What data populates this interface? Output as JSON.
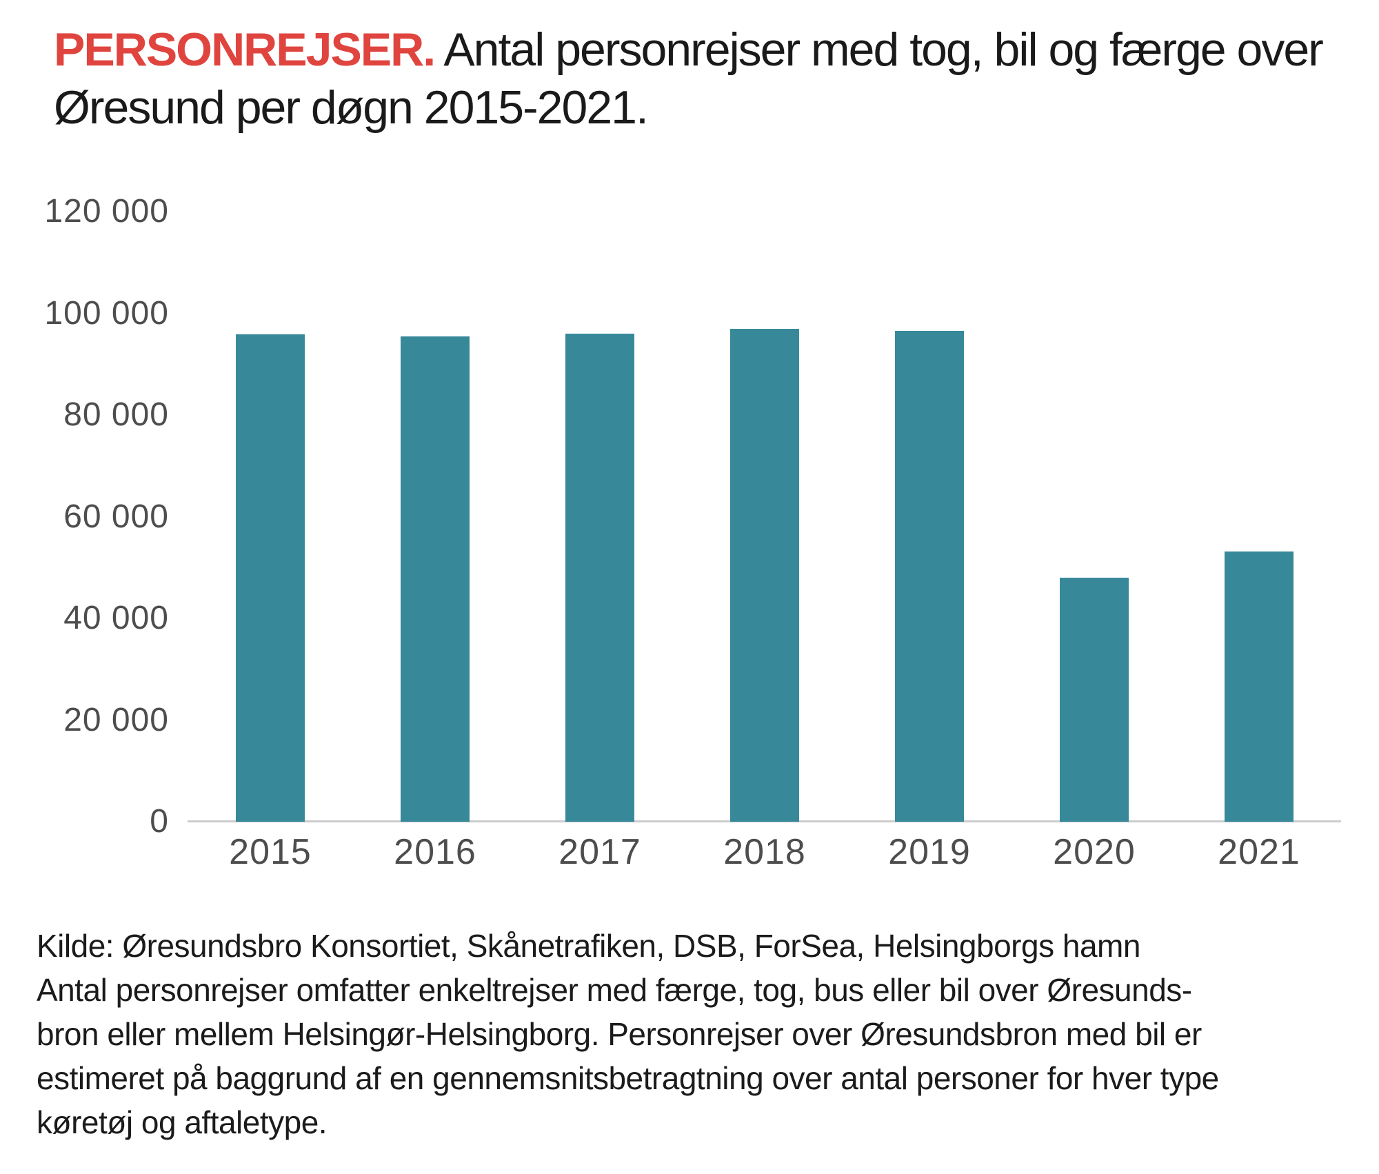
{
  "title": {
    "highlight": "PERSONREJSER.",
    "rest": "Antal personrejser med tog, bil og færge over Øresund per døgn 2015-2021.",
    "highlight_color": "#e0443f"
  },
  "chart_data": {
    "type": "bar",
    "title": "PERSONREJSER. Antal personrejser med tog, bil og færge over Øresund per døgn 2015-2021.",
    "categories": [
      "2015",
      "2016",
      "2017",
      "2018",
      "2019",
      "2020",
      "2021"
    ],
    "values": [
      95900,
      95500,
      96000,
      96900,
      96500,
      48000,
      53100
    ],
    "xlabel": "",
    "ylabel": "",
    "ylim": [
      0,
      120000
    ],
    "ytick_step": 20000,
    "ytick_labels": [
      "120 000",
      "100 000",
      "80 000",
      "60 000",
      "40 000",
      "20 000",
      "0"
    ],
    "grid": false,
    "legend": false,
    "bar_color": "#37899a",
    "axis_line_color": "#cccccc",
    "tick_label_color": "#4d4d4d"
  },
  "footer": {
    "lines": [
      "Kilde: Øresundsbro Konsortiet, Skånetrafiken, DSB, ForSea, Helsingborgs hamn",
      "Antal personrejser omfatter enkeltrejser med færge, tog, bus eller bil over Øresunds-",
      "bron eller mellem Helsingør-Helsingborg. Personrejser over Øresundsbron med bil er",
      "estimeret på baggrund af en gennemsnitsbetragtning over antal personer for hver type",
      "køretøj og aftaletype."
    ]
  }
}
